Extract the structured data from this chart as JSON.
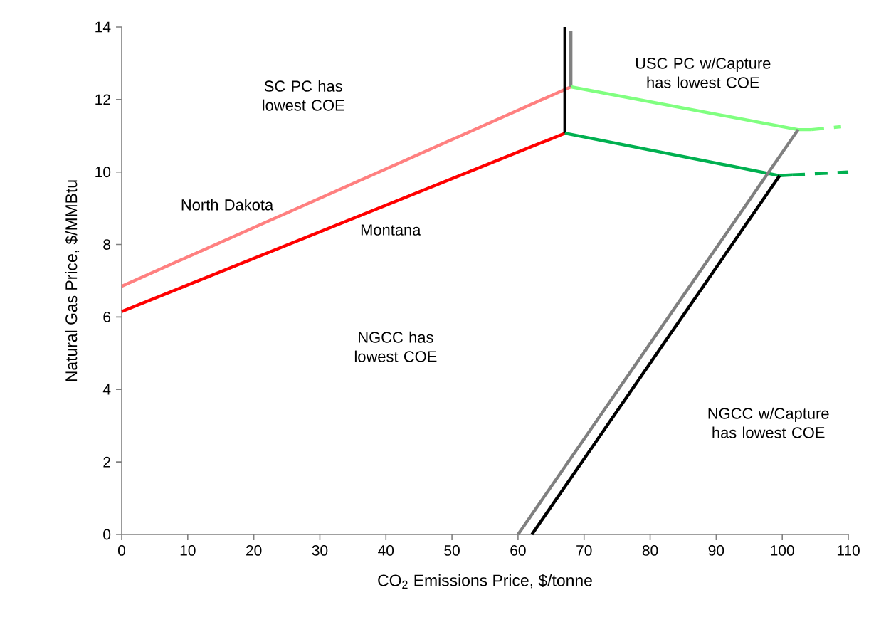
{
  "chart_data": {
    "type": "line",
    "xlabel": "CO$_{2}$ Emissions Price, $/tonne",
    "ylabel": "Natural Gas Price, $/MMBtu",
    "xlim": [
      0,
      110
    ],
    "xticks": [
      0,
      10,
      20,
      30,
      40,
      50,
      60,
      70,
      80,
      90,
      100,
      110
    ],
    "ylim": [
      0,
      14
    ],
    "yticks": [
      0,
      2,
      4,
      6,
      8,
      10,
      12,
      14
    ],
    "grid": false,
    "marker": "none",
    "series": [
      {
        "color": "#ff8080",
        "x": [
          0,
          68
        ],
        "values": [
          6.85,
          12.35
        ]
      },
      {
        "color": "#ff0000",
        "x": [
          0,
          67.1
        ],
        "values": [
          6.15,
          11.07
        ]
      },
      {
        "color": "#000000",
        "x": [
          67.1,
          67.1
        ],
        "values": [
          11.07,
          14
        ]
      },
      {
        "color": "#808080",
        "x": [
          68,
          68
        ],
        "values": [
          12.35,
          13.9
        ]
      },
      {
        "color": "#80ff80",
        "x": [
          68,
          102.4,
          104.4
        ],
        "values": [
          12.35,
          11.17,
          11.17
        ]
      },
      {
        "color": "#80ff80",
        "line_style": "dashed",
        "x": [
          104.4,
          108.9
        ],
        "values": [
          11.17,
          11.25
        ]
      },
      {
        "color": "#00b050",
        "x": [
          67.1,
          99.6,
          101.5
        ],
        "values": [
          11.07,
          9.9,
          9.92
        ]
      },
      {
        "color": "#00b050",
        "line_style": "dashed",
        "x": [
          101.5,
          110
        ],
        "values": [
          9.92,
          10.0
        ]
      },
      {
        "color": "#808080",
        "x": [
          60,
          102.4
        ],
        "values": [
          0,
          11.17
        ]
      },
      {
        "color": "#000000",
        "x": [
          62.1,
          99.6
        ],
        "values": [
          0,
          9.9
        ]
      }
    ],
    "annotations": [
      "SC PC has lowest COE",
      "USC PC w/Capture has lowest COE",
      "North Dakota",
      "Montana",
      "NGCC has lowest COE",
      "NGCC w/Capture has lowest COE"
    ]
  }
}
